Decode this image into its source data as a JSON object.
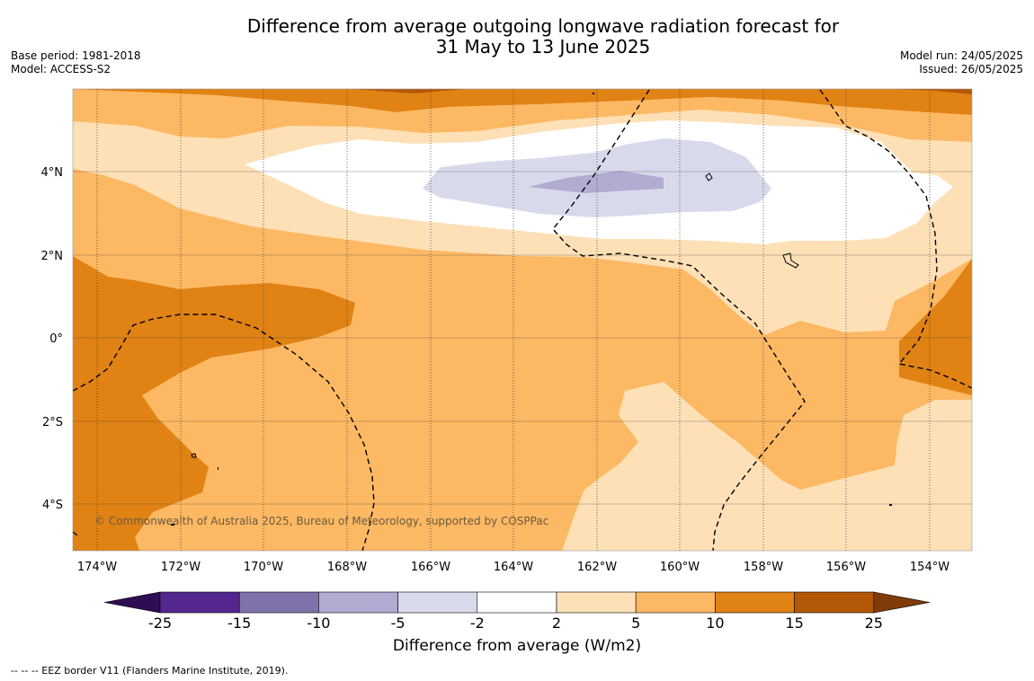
{
  "title_line1": "Difference from average outgoing longwave radiation forecast for",
  "title_line2": "31 May to 13 June 2025",
  "meta_left": {
    "base_period": "Base period: 1981-2018",
    "model": "Model: ACCESS-S2"
  },
  "meta_right": {
    "model_run": "Model run: 24/05/2025",
    "issued": "Issued: 26/05/2025"
  },
  "map": {
    "copyright": "© Commonwealth of Australia 2025, Bureau of Meteorology, supported by COSPPac",
    "lat_labels": [
      "4°N",
      "2°N",
      "0°",
      "2°S",
      "4°S"
    ],
    "lon_labels": [
      "174°W",
      "172°W",
      "170°W",
      "168°W",
      "166°W",
      "164°W",
      "162°W",
      "160°W",
      "158°W",
      "156°W",
      "154°W"
    ]
  },
  "colorbar": {
    "label": "Difference from average (W/m2)",
    "ticks": [
      "-25",
      "-15",
      "-10",
      "-5",
      "-2",
      "2",
      "5",
      "10",
      "15",
      "25"
    ],
    "colors": {
      "below": "#2d0d54",
      "m25_m15": "#54278f",
      "m15_m10": "#8073ac",
      "m10_m5": "#b2abd2",
      "m5_m2": "#d8daeb",
      "m2_p2": "#ffffff",
      "p2_p5": "#fee0b6",
      "p5_p10": "#fdb863",
      "p10_p15": "#e08214",
      "p15_p25": "#b35806",
      "above": "#7f3b08"
    }
  },
  "footnote": "--  --  -- EEZ border V11 (Flanders Marine Institute, 2019)."
}
